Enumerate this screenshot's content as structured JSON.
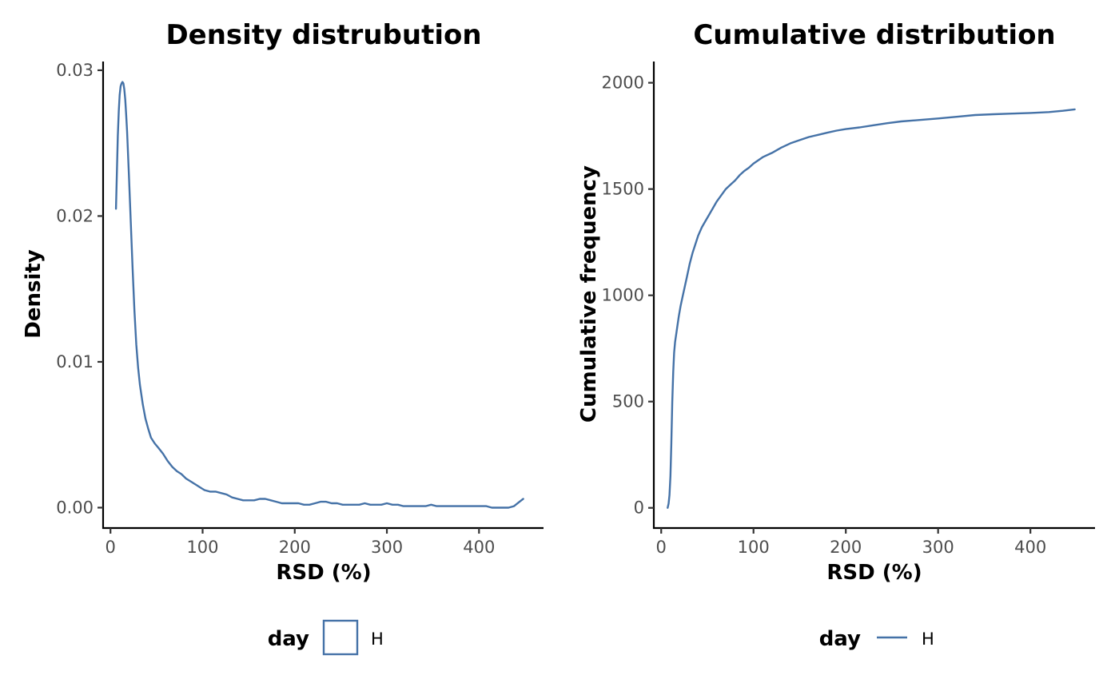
{
  "chart_data": [
    {
      "type": "line",
      "title": "Density distrubution",
      "xlabel": "RSD (%)",
      "ylabel": "Density",
      "xlim": [
        -8,
        470
      ],
      "ylim": [
        -0.0014,
        0.0306
      ],
      "xticks": [
        0,
        100,
        200,
        300,
        400
      ],
      "xtick_labels": [
        "0",
        "100",
        "200",
        "300",
        "400"
      ],
      "yticks": [
        0,
        0.01,
        0.02,
        0.03
      ],
      "ytick_labels": [
        "0.00",
        "0.01",
        "0.02",
        "0.03"
      ],
      "grid": false,
      "legend": {
        "title": "day",
        "position": "bottom",
        "key": "box",
        "entries": [
          "H"
        ]
      },
      "series": [
        {
          "name": "H",
          "color": "#4572a7",
          "x": [
            6,
            8,
            9,
            10,
            11,
            12,
            13,
            14,
            15,
            16,
            17,
            18,
            20,
            22,
            24,
            26,
            28,
            30,
            32,
            35,
            38,
            41,
            44,
            48,
            52,
            57,
            62,
            67,
            72,
            77,
            82,
            87,
            92,
            97,
            102,
            108,
            114,
            120,
            126,
            132,
            138,
            144,
            150,
            156,
            162,
            168,
            174,
            180,
            186,
            192,
            198,
            204,
            210,
            216,
            222,
            228,
            234,
            240,
            246,
            252,
            258,
            264,
            270,
            276,
            282,
            288,
            294,
            300,
            306,
            312,
            318,
            324,
            330,
            336,
            342,
            348,
            354,
            360,
            366,
            372,
            378,
            384,
            390,
            396,
            402,
            408,
            414,
            420,
            426,
            432,
            438,
            444,
            448
          ],
          "y": [
            0.0205,
            0.0255,
            0.0272,
            0.0283,
            0.0289,
            0.0291,
            0.0292,
            0.0291,
            0.0287,
            0.028,
            0.027,
            0.0258,
            0.0228,
            0.0196,
            0.0164,
            0.0135,
            0.0112,
            0.0096,
            0.0084,
            0.0071,
            0.0061,
            0.0054,
            0.0048,
            0.0044,
            0.0041,
            0.0037,
            0.0032,
            0.0028,
            0.0025,
            0.0023,
            0.002,
            0.0018,
            0.0016,
            0.0014,
            0.0012,
            0.0011,
            0.0011,
            0.001,
            0.0009,
            0.0007,
            0.0006,
            0.0005,
            0.0005,
            0.0005,
            0.0006,
            0.0006,
            0.0005,
            0.0004,
            0.0003,
            0.0003,
            0.0003,
            0.0003,
            0.0002,
            0.0002,
            0.0003,
            0.0004,
            0.0004,
            0.0003,
            0.0003,
            0.0002,
            0.0002,
            0.0002,
            0.0002,
            0.0003,
            0.0002,
            0.0002,
            0.0002,
            0.0003,
            0.0002,
            0.0002,
            0.0001,
            0.0001,
            0.0001,
            0.0001,
            0.0001,
            0.0002,
            0.0001,
            0.0001,
            0.0001,
            0.0001,
            0.0001,
            0.0001,
            0.0001,
            0.0001,
            0.0001,
            0.0001,
            0.0,
            0.0,
            0.0,
            0.0,
            0.0001,
            0.0004,
            0.0006
          ]
        }
      ]
    },
    {
      "type": "line",
      "title": "Cumulative distribution",
      "xlabel": "RSD (%)",
      "ylabel": "Cumulative frequency",
      "xlim": [
        -8,
        470
      ],
      "ylim": [
        -95,
        2100
      ],
      "xticks": [
        0,
        100,
        200,
        300,
        400
      ],
      "xtick_labels": [
        "0",
        "100",
        "200",
        "300",
        "400"
      ],
      "yticks": [
        0,
        500,
        1000,
        1500,
        2000
      ],
      "ytick_labels": [
        "0",
        "500",
        "1000",
        "1500",
        "2000"
      ],
      "grid": false,
      "legend": {
        "title": "day",
        "position": "bottom",
        "key": "line",
        "entries": [
          "H"
        ]
      },
      "series": [
        {
          "name": "H",
          "color": "#4572a7",
          "x": [
            7,
            8,
            9,
            10,
            11,
            12,
            13,
            14,
            15,
            17,
            19,
            21,
            23,
            25,
            28,
            31,
            34,
            37,
            40,
            44,
            48,
            52,
            56,
            60,
            65,
            70,
            75,
            80,
            85,
            90,
            95,
            100,
            110,
            120,
            130,
            140,
            150,
            160,
            170,
            180,
            190,
            200,
            215,
            230,
            245,
            260,
            280,
            300,
            320,
            340,
            360,
            380,
            400,
            420,
            435,
            448
          ],
          "y": [
            0,
            20,
            60,
            150,
            300,
            500,
            640,
            730,
            780,
            840,
            900,
            950,
            990,
            1030,
            1090,
            1150,
            1200,
            1240,
            1280,
            1320,
            1350,
            1380,
            1410,
            1440,
            1470,
            1500,
            1520,
            1540,
            1565,
            1585,
            1600,
            1620,
            1650,
            1670,
            1695,
            1715,
            1730,
            1745,
            1755,
            1765,
            1775,
            1782,
            1790,
            1800,
            1810,
            1818,
            1825,
            1832,
            1840,
            1848,
            1852,
            1855,
            1858,
            1862,
            1868,
            1875
          ]
        }
      ]
    }
  ]
}
